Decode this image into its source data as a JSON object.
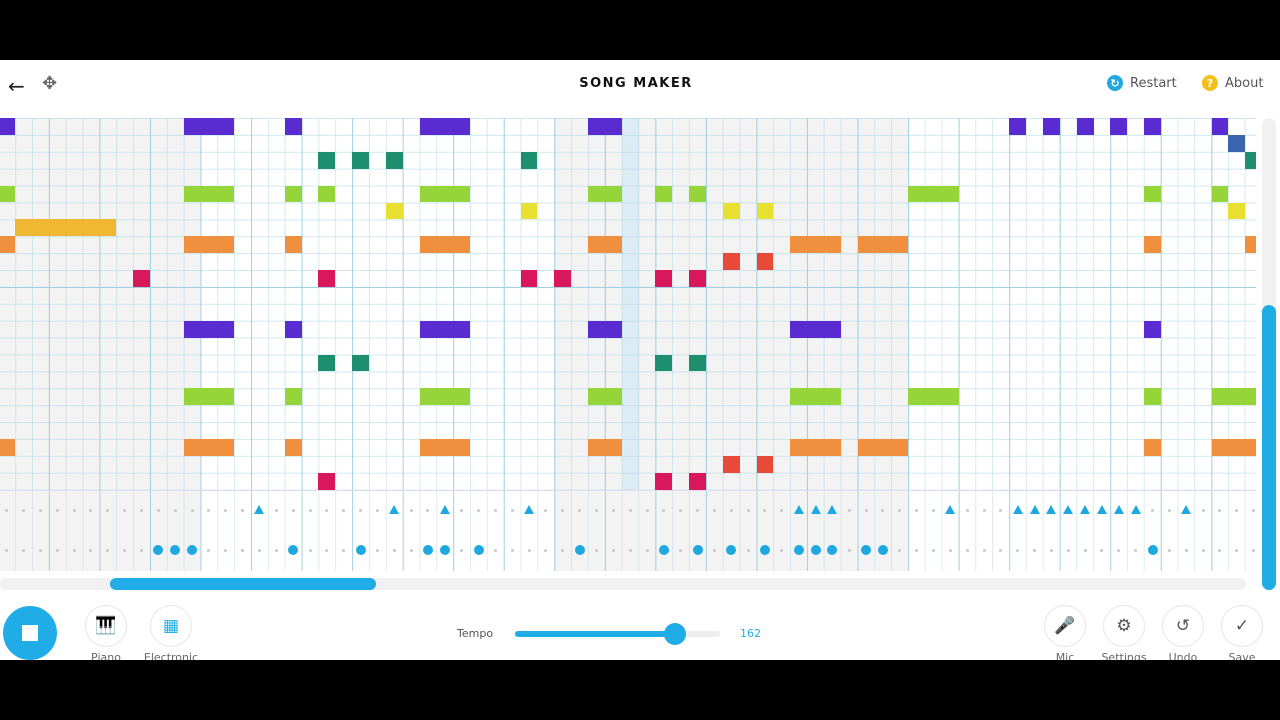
{
  "header": {
    "title": "SONG MAKER",
    "back_icon": "arrow-left-icon",
    "move_icon": "move-arrows-icon",
    "restart_label": "Restart",
    "about_label": "About",
    "restart_color": "#22a7e0",
    "about_color": "#f3c019"
  },
  "grid": {
    "rows": 22,
    "columns": 75,
    "row_colors": [
      "#5a2bd0",
      "#3a63b0",
      "#1d8f6e",
      "#5cb85c",
      "#95d53a",
      "#e8e030",
      "#f0b733",
      "#f0903f",
      "#e84a3a",
      "#d8185a",
      "#8a2bb8",
      "#6a35c9"
    ],
    "playhead_column": 37,
    "notes": [
      [
        0,
        0,
        1
      ],
      [
        0,
        11,
        3
      ],
      [
        0,
        17,
        1
      ],
      [
        0,
        25,
        3
      ],
      [
        0,
        35,
        2
      ],
      [
        0,
        60,
        1
      ],
      [
        0,
        62,
        1
      ],
      [
        0,
        64,
        1
      ],
      [
        0,
        66,
        1
      ],
      [
        0,
        68,
        1
      ],
      [
        0,
        72,
        1
      ],
      [
        1,
        73,
        1
      ],
      [
        2,
        19,
        1
      ],
      [
        2,
        21,
        1
      ],
      [
        2,
        23,
        1
      ],
      [
        2,
        31,
        1
      ],
      [
        2,
        74,
        1
      ],
      [
        4,
        0,
        1
      ],
      [
        4,
        11,
        3
      ],
      [
        4,
        17,
        1
      ],
      [
        4,
        19,
        1
      ],
      [
        4,
        25,
        3
      ],
      [
        4,
        35,
        2
      ],
      [
        4,
        39,
        1
      ],
      [
        4,
        41,
        1
      ],
      [
        4,
        54,
        3
      ],
      [
        4,
        68,
        1
      ],
      [
        4,
        72,
        1
      ],
      [
        5,
        23,
        1
      ],
      [
        5,
        31,
        1
      ],
      [
        5,
        43,
        1
      ],
      [
        5,
        45,
        1
      ],
      [
        5,
        73,
        1
      ],
      [
        6,
        1,
        6
      ],
      [
        7,
        0,
        1
      ],
      [
        7,
        11,
        3
      ],
      [
        7,
        17,
        1
      ],
      [
        7,
        25,
        3
      ],
      [
        7,
        35,
        2
      ],
      [
        7,
        47,
        3
      ],
      [
        7,
        51,
        3
      ],
      [
        7,
        68,
        1
      ],
      [
        7,
        74,
        1
      ],
      [
        8,
        43,
        1
      ],
      [
        8,
        45,
        1
      ],
      [
        9,
        8,
        1
      ],
      [
        9,
        19,
        1
      ],
      [
        9,
        31,
        1
      ],
      [
        9,
        33,
        1
      ],
      [
        9,
        39,
        1
      ],
      [
        9,
        41,
        1
      ],
      [
        12,
        11,
        3
      ],
      [
        12,
        17,
        1
      ],
      [
        12,
        25,
        3
      ],
      [
        12,
        35,
        2
      ],
      [
        12,
        47,
        3
      ],
      [
        12,
        68,
        1
      ],
      [
        14,
        19,
        1
      ],
      [
        14,
        21,
        1
      ],
      [
        14,
        39,
        1
      ],
      [
        14,
        41,
        1
      ],
      [
        16,
        11,
        3
      ],
      [
        16,
        17,
        1
      ],
      [
        16,
        25,
        3
      ],
      [
        16,
        35,
        2
      ],
      [
        16,
        47,
        3
      ],
      [
        16,
        54,
        3
      ],
      [
        16,
        68,
        1
      ],
      [
        16,
        72,
        3
      ],
      [
        19,
        0,
        1
      ],
      [
        19,
        11,
        3
      ],
      [
        19,
        17,
        1
      ],
      [
        19,
        25,
        3
      ],
      [
        19,
        35,
        2
      ],
      [
        19,
        47,
        3
      ],
      [
        19,
        51,
        3
      ],
      [
        19,
        68,
        1
      ],
      [
        19,
        72,
        3
      ],
      [
        20,
        43,
        1
      ],
      [
        20,
        45,
        1
      ],
      [
        21,
        19,
        1
      ],
      [
        21,
        39,
        1
      ],
      [
        21,
        41,
        1
      ]
    ]
  },
  "percussion": {
    "color": "#1ea8e0",
    "triangles": [
      15,
      23,
      26,
      31,
      47,
      48,
      49,
      56,
      60,
      61,
      62,
      63,
      64,
      65,
      66,
      67,
      70
    ],
    "circles": [
      9,
      10,
      11,
      17,
      21,
      25,
      26,
      28,
      34,
      39,
      41,
      43,
      45,
      47,
      48,
      49,
      51,
      52,
      68
    ]
  },
  "scroll": {
    "horizontal_position": 0.09,
    "vertical_position": 1.0
  },
  "toolbar": {
    "play_icon": "stop-icon",
    "instrument_label": "Piano",
    "instrument_icon": "piano-icon",
    "percussion_label": "Electronic",
    "percussion_icon": "drum-machine-icon",
    "tempo_label": "Tempo",
    "tempo_value": "162",
    "tempo_fraction": 0.78,
    "mic_label": "Mic",
    "settings_label": "Settings",
    "undo_label": "Undo",
    "save_label": "Save"
  }
}
